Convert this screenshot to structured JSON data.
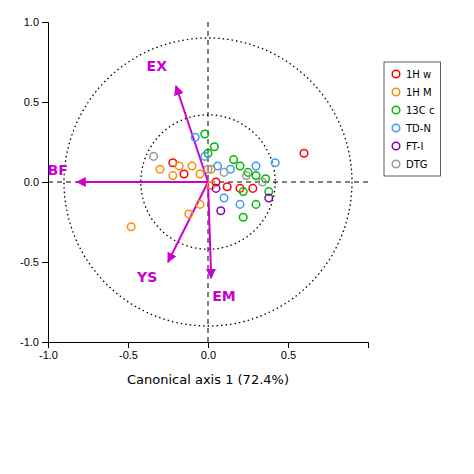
{
  "chart_data": {
    "type": "scatter",
    "x_label": "Canonical axis 1 (72.4%)",
    "xlim": [
      -1.0,
      1.0
    ],
    "ylim": [
      -1.0,
      1.0
    ],
    "xticks": [
      {
        "value": -1.0,
        "label": "-1.0"
      },
      {
        "value": -0.5,
        "label": "-0.5"
      },
      {
        "value": 0.0,
        "label": "0.0"
      },
      {
        "value": 0.5,
        "label": "0.5"
      }
    ],
    "yticks": [
      {
        "value": -1.0,
        "label": "-1.0"
      },
      {
        "value": -0.5,
        "label": "-0.5"
      },
      {
        "value": 0.0,
        "label": "0.0"
      },
      {
        "value": 0.5,
        "label": "0.5"
      },
      {
        "value": 1.0,
        "label": "1.0"
      }
    ],
    "grid": false,
    "legend": "right",
    "marker": "circle",
    "hlines": [
      0
    ],
    "vlines": [
      0
    ],
    "circles": [
      {
        "radius": 0.42
      },
      {
        "radius": 0.9
      }
    ],
    "arrow_color": "#CC00CC",
    "arrows": [
      {
        "label": "EX",
        "x": -0.2,
        "y": 0.6,
        "label_x": -0.32,
        "label_y": 0.72
      },
      {
        "label": "BF",
        "x": -0.82,
        "y": 0.0,
        "label_x": -0.94,
        "label_y": 0.07
      },
      {
        "label": "YS",
        "x": -0.25,
        "y": -0.5,
        "label_x": -0.38,
        "label_y": -0.6
      },
      {
        "label": "EM",
        "x": 0.02,
        "y": -0.6,
        "label_x": 0.1,
        "label_y": -0.72
      }
    ],
    "series": [
      {
        "name": "1H w",
        "color": "#FF0000",
        "x": [
          -0.22,
          -0.15,
          0.05,
          0.12,
          0.2,
          0.28,
          0.6
        ],
        "values": [
          0.12,
          0.05,
          0.0,
          -0.03,
          -0.04,
          -0.04,
          0.18
        ]
      },
      {
        "name": "1H M",
        "color": "#FF8C00",
        "x": [
          -0.48,
          -0.3,
          -0.22,
          -0.18,
          -0.1,
          -0.05,
          0.02,
          0.02,
          -0.05,
          -0.12
        ],
        "values": [
          -0.28,
          0.08,
          0.04,
          0.1,
          0.1,
          0.05,
          0.08,
          -0.02,
          -0.14,
          -0.2
        ]
      },
      {
        "name": "13C c",
        "color": "#00BB00",
        "x": [
          -0.02,
          0.04,
          0.0,
          0.16,
          0.2,
          0.25,
          0.3,
          0.36,
          0.38,
          0.22,
          0.3,
          0.22
        ],
        "values": [
          0.3,
          0.22,
          0.18,
          0.14,
          0.1,
          0.06,
          0.04,
          0.02,
          -0.06,
          -0.06,
          -0.14,
          -0.22
        ]
      },
      {
        "name": "TD-N",
        "color": "#4499FF",
        "x": [
          -0.08,
          -0.02,
          0.06,
          0.14,
          0.3,
          0.42,
          0.1,
          0.2
        ],
        "values": [
          0.28,
          0.16,
          0.1,
          0.08,
          0.1,
          0.12,
          -0.1,
          -0.14
        ]
      },
      {
        "name": "FT-I",
        "color": "#8800BB",
        "x": [
          0.05,
          0.08,
          0.38
        ],
        "values": [
          -0.04,
          -0.18,
          -0.1
        ]
      },
      {
        "name": "DTG",
        "color": "#999999",
        "x": [
          -0.34,
          0.0,
          0.1,
          0.24,
          0.34
        ],
        "values": [
          0.16,
          0.08,
          0.06,
          0.04,
          0.0
        ]
      }
    ]
  }
}
